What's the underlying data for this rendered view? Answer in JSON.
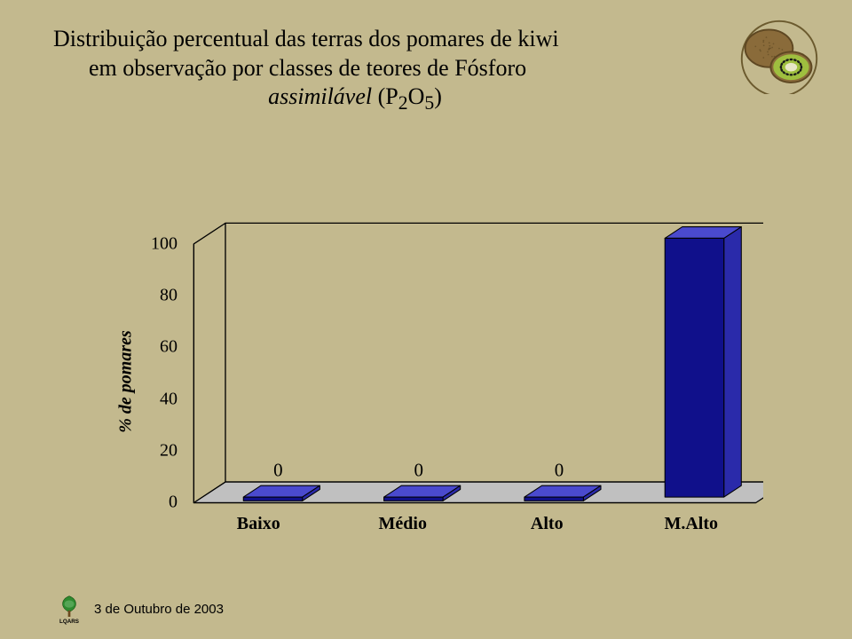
{
  "background_color": "#c3b98e",
  "title": {
    "line1": "Distribuição percentual das terras dos pomares de kiwi",
    "line2": "em observação por classes de teores de Fósforo",
    "line3_plain": "assimilável ",
    "line3_formula_prefix": "(P",
    "line3_formula_sub1": "2",
    "line3_formula_mid": "O",
    "line3_formula_sub2": "5",
    "line3_formula_suffix": ")",
    "fontsize": 26,
    "color": "#000000"
  },
  "chart": {
    "type": "bar-3d",
    "y_axis_label": "% de pomares",
    "label_fontsize": 20,
    "categories": [
      "Baixo",
      "Médio",
      "Alto",
      "M.Alto"
    ],
    "values": [
      0,
      0,
      0,
      100
    ],
    "bar_fill": "#10108b",
    "bar_side": "#2a2aaa",
    "bar_top": "#4a4ace",
    "plot_floor": "#c0c0c0",
    "plot_wall": "#c3b98e",
    "plot_edge": "#000000",
    "ylim": [
      0,
      100
    ],
    "ytick_step": 20,
    "y_ticks": [
      0,
      20,
      40,
      60,
      80,
      100
    ],
    "value_label_fontsize": 20,
    "x_label_fontsize": 20
  },
  "kiwi": {
    "skin": "#8a6b3a",
    "skin_dark": "#5e4722",
    "flesh": "#9fbf3f",
    "core": "#e8e6c7",
    "seed": "#1a1a1a"
  },
  "footer": {
    "text": "3 de Outubro de 2003",
    "fontsize": 15,
    "logo_caption": "LQARS",
    "logo_leaf": "#2f8a2f",
    "logo_stem": "#6b4a1e"
  }
}
